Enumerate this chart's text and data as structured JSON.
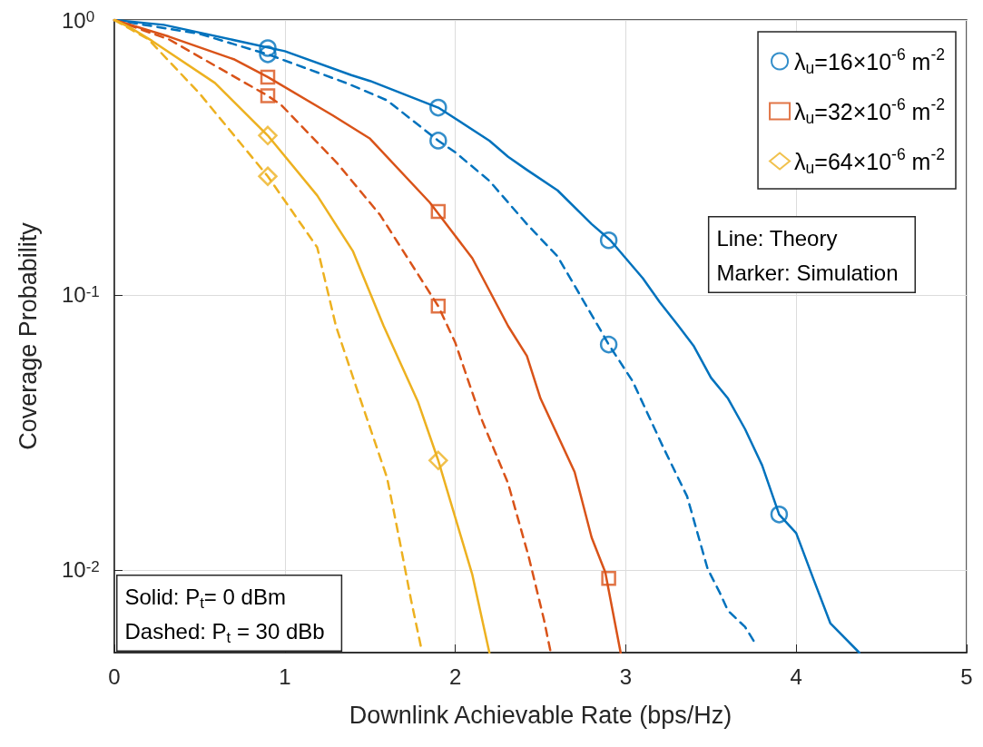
{
  "chart_data": {
    "type": "line",
    "xlabel": "Downlink Achievable Rate (bps/Hz)",
    "ylabel": "Coverage Probability",
    "xlim": [
      0,
      5
    ],
    "xticks": [
      0,
      1,
      2,
      3,
      4,
      5
    ],
    "ylim": [
      0.005,
      1
    ],
    "yticks": [
      {
        "value": 1,
        "label": "10$^{0}$"
      },
      {
        "value": 0.1,
        "label": "10$^{-1}$"
      },
      {
        "value": 0.01,
        "label": "10$^{-2}$"
      }
    ],
    "log": "y",
    "grid": true,
    "legend": "top right",
    "annotations": [
      "Line: Theory\nMarker: Simulation",
      "Solid: P$_{t}$= 0 dBm\nDashed: P$_{t}$ = 30 dBb"
    ],
    "series": [
      {
        "color": "#0072bd",
        "line_style": "solid",
        "marker": "none",
        "x": [
          0,
          0.29,
          1.0,
          1.39,
          1.5,
          1.9,
          2.2,
          2.31,
          2.42,
          2.6,
          2.8,
          2.91,
          3.1,
          3.2,
          3.31,
          3.4,
          3.5,
          3.6,
          3.7,
          3.8,
          3.9,
          4.0,
          4.1,
          4.2,
          4.37
        ],
        "values": [
          1,
          0.96,
          0.77,
          0.63,
          0.6,
          0.48,
          0.364,
          0.318,
          0.285,
          0.24,
          0.181,
          0.158,
          0.115,
          0.094,
          0.077,
          0.065,
          0.05,
          0.042,
          0.0325,
          0.024,
          0.0159,
          0.0136,
          0.0093,
          0.0064,
          0.005
        ]
      },
      {
        "color": "#0072bd",
        "line_style": "dashed",
        "marker": "none",
        "x": [
          0,
          0.5,
          0.9,
          1.36,
          1.6,
          1.9,
          2.0,
          2.2,
          2.42,
          2.6,
          2.86,
          2.9,
          3.04,
          3.22,
          3.36,
          3.48,
          3.55,
          3.6,
          3.7,
          3.76
        ],
        "values": [
          1,
          0.89,
          0.75,
          0.59,
          0.51,
          0.364,
          0.33,
          0.26,
          0.181,
          0.138,
          0.073,
          0.066,
          0.0486,
          0.0279,
          0.0185,
          0.0101,
          0.0083,
          0.0071,
          0.0062,
          0.0054
        ]
      },
      {
        "color": "#d95319",
        "line_style": "solid",
        "marker": "none",
        "x": [
          0,
          0.32,
          0.7,
          0.9,
          1.28,
          1.5,
          1.85,
          2.1,
          2.31,
          2.42,
          2.5,
          2.7,
          2.8,
          2.88,
          2.97
        ],
        "values": [
          1,
          0.87,
          0.72,
          0.62,
          0.45,
          0.37,
          0.217,
          0.136,
          0.077,
          0.06,
          0.042,
          0.0227,
          0.0131,
          0.0098,
          0.005
        ]
      },
      {
        "color": "#d95319",
        "line_style": "dashed",
        "marker": "none",
        "x": [
          0,
          0.32,
          0.9,
          0.98,
          1.31,
          1.56,
          1.9,
          2.0,
          2.15,
          2.31,
          2.43,
          2.52,
          2.56
        ],
        "values": [
          1,
          0.85,
          0.53,
          0.49,
          0.3,
          0.195,
          0.091,
          0.067,
          0.0358,
          0.0206,
          0.0112,
          0.0066,
          0.005
        ]
      },
      {
        "color": "#edb120",
        "line_style": "solid",
        "marker": "none",
        "x": [
          0,
          0.09,
          0.22,
          0.59,
          0.9,
          1.19,
          1.4,
          1.58,
          1.78,
          1.9,
          2.1,
          2.2
        ],
        "values": [
          1,
          0.94,
          0.84,
          0.59,
          0.38,
          0.23,
          0.144,
          0.077,
          0.041,
          0.025,
          0.0096,
          0.005
        ]
      },
      {
        "color": "#edb120",
        "line_style": "dashed",
        "marker": "none",
        "x": [
          0,
          0.2,
          0.5,
          0.9,
          1.19,
          1.3,
          1.42,
          1.6,
          1.67,
          1.74,
          1.8
        ],
        "values": [
          1,
          0.85,
          0.54,
          0.27,
          0.149,
          0.077,
          0.046,
          0.0216,
          0.0131,
          0.0078,
          0.0052
        ]
      },
      {
        "type": "scatter",
        "name": "λ$_{u}$=16×10$^{-6}$ m$^{-2}$",
        "color": "#0072bd",
        "marker": "circle",
        "x": [
          0.9,
          0.9,
          1.9,
          1.9,
          2.9,
          2.9,
          3.9
        ],
        "values": [
          0.79,
          0.75,
          0.48,
          0.364,
          0.158,
          0.066,
          0.0159
        ]
      },
      {
        "type": "scatter",
        "name": "λ$_{u}$=32×10$^{-6}$ m$^{-2}$",
        "color": "#d95319",
        "marker": "square",
        "x": [
          0.9,
          0.9,
          1.9,
          1.9,
          2.9
        ],
        "values": [
          0.62,
          0.53,
          0.201,
          0.091,
          0.0093
        ]
      },
      {
        "type": "scatter",
        "name": "λ$_{u}$=64×10$^{-6}$ m$^{-2}$",
        "color": "#edb120",
        "marker": "diamond",
        "x": [
          0.9,
          0.9,
          1.9
        ],
        "values": [
          0.38,
          0.27,
          0.025
        ]
      }
    ]
  }
}
